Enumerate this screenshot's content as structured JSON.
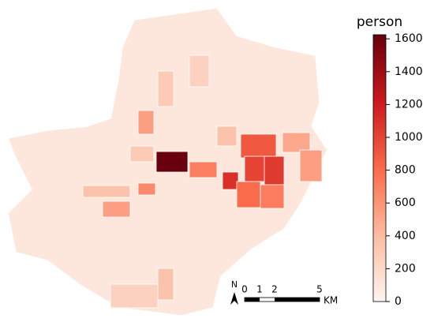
{
  "map": {
    "regions": [
      {
        "value": 1620
      },
      {
        "value": 900
      },
      {
        "value": 1000
      },
      {
        "value": 1050
      },
      {
        "value": 1100
      },
      {
        "value": 800
      },
      {
        "value": 720
      },
      {
        "value": 700
      },
      {
        "value": 550
      },
      {
        "value": 650
      },
      {
        "value": 550
      },
      {
        "value": 500
      },
      {
        "value": 550
      },
      {
        "value": 300
      },
      {
        "value": 250
      },
      {
        "value": 350
      },
      {
        "value": 350
      },
      {
        "value": 350
      },
      {
        "value": 300
      },
      {
        "value": 250
      }
    ],
    "colorbar": {
      "label": "person",
      "lim": [
        0,
        1625
      ],
      "ticks": [
        0,
        200,
        400,
        600,
        800,
        1000,
        1200,
        1400,
        1600
      ]
    },
    "north": "N",
    "scale_bar": {
      "ticks": [
        0,
        1,
        2,
        5
      ],
      "unit": "KM"
    }
  }
}
